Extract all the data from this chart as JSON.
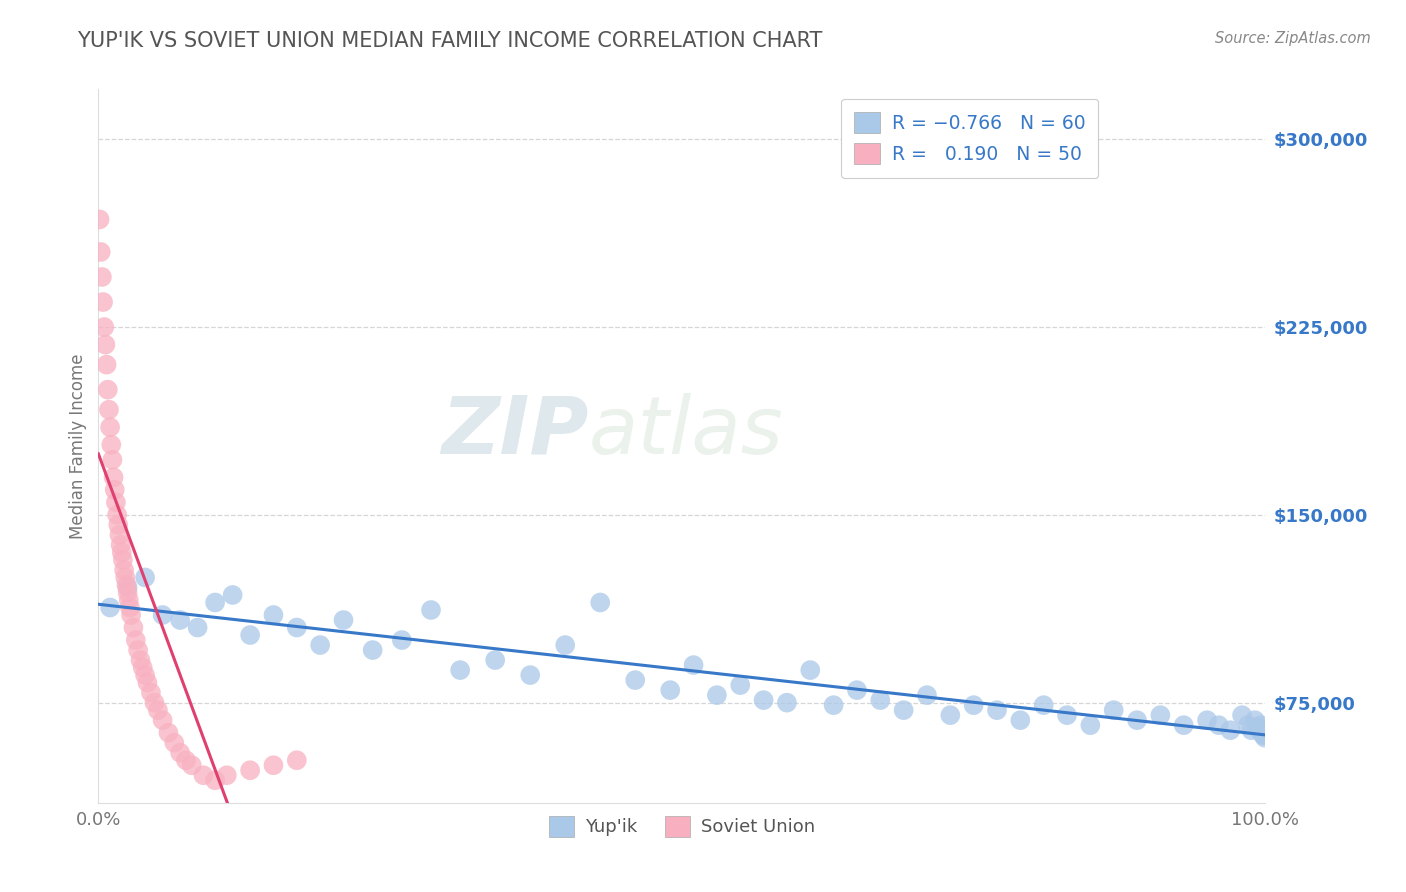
{
  "title": "YUP'IK VS SOVIET UNION MEDIAN FAMILY INCOME CORRELATION CHART",
  "source": "Source: ZipAtlas.com",
  "ylabel": "Median Family Income",
  "watermark_zip": "ZIP",
  "watermark_atlas": "atlas",
  "xmin": 0.0,
  "xmax": 1.0,
  "xtick_labels": [
    "0.0%",
    "100.0%"
  ],
  "ytick_values": [
    75000,
    150000,
    225000,
    300000
  ],
  "ymin": 35000,
  "ymax": 320000,
  "background_color": "#ffffff",
  "grid_color": "#cccccc",
  "title_color": "#555555",
  "yupik_scatter_color": "#aac8e8",
  "yupik_line_color": "#3878c8",
  "soviet_scatter_color": "#f8b0c0",
  "soviet_line_color": "#e04070",
  "soviet_dashed_color": "#f8b0c0",
  "right_label_color": "#3878c8",
  "watermark_color": "#d0dfe8",
  "legend_label_color": "#3878c8",
  "source_color": "#888888",
  "yupik_points_x": [
    0.01,
    0.025,
    0.04,
    0.055,
    0.07,
    0.085,
    0.1,
    0.115,
    0.13,
    0.15,
    0.17,
    0.19,
    0.21,
    0.235,
    0.26,
    0.285,
    0.31,
    0.34,
    0.37,
    0.4,
    0.43,
    0.46,
    0.49,
    0.51,
    0.53,
    0.55,
    0.57,
    0.59,
    0.61,
    0.63,
    0.65,
    0.67,
    0.69,
    0.71,
    0.73,
    0.75,
    0.77,
    0.79,
    0.81,
    0.83,
    0.85,
    0.87,
    0.89,
    0.91,
    0.93,
    0.95,
    0.96,
    0.97,
    0.98,
    0.985,
    0.988,
    0.991,
    0.993,
    0.995,
    0.996,
    0.997,
    0.998,
    0.9985,
    0.999,
    0.9995
  ],
  "yupik_points_y": [
    113000,
    121000,
    125000,
    110000,
    108000,
    105000,
    115000,
    118000,
    102000,
    110000,
    105000,
    98000,
    108000,
    96000,
    100000,
    112000,
    88000,
    92000,
    86000,
    98000,
    115000,
    84000,
    80000,
    90000,
    78000,
    82000,
    76000,
    75000,
    88000,
    74000,
    80000,
    76000,
    72000,
    78000,
    70000,
    74000,
    72000,
    68000,
    74000,
    70000,
    66000,
    72000,
    68000,
    70000,
    66000,
    68000,
    66000,
    64000,
    70000,
    66000,
    64000,
    68000,
    65000,
    64000,
    66000,
    63000,
    62000,
    64000,
    62000,
    61000
  ],
  "soviet_points_x": [
    0.001,
    0.002,
    0.003,
    0.004,
    0.005,
    0.006,
    0.007,
    0.008,
    0.009,
    0.01,
    0.011,
    0.012,
    0.013,
    0.014,
    0.015,
    0.016,
    0.017,
    0.018,
    0.019,
    0.02,
    0.021,
    0.022,
    0.023,
    0.024,
    0.025,
    0.026,
    0.027,
    0.028,
    0.03,
    0.032,
    0.034,
    0.036,
    0.038,
    0.04,
    0.042,
    0.045,
    0.048,
    0.051,
    0.055,
    0.06,
    0.065,
    0.07,
    0.075,
    0.08,
    0.09,
    0.1,
    0.11,
    0.13,
    0.15,
    0.17
  ],
  "soviet_points_y": [
    268000,
    255000,
    245000,
    235000,
    225000,
    218000,
    210000,
    200000,
    192000,
    185000,
    178000,
    172000,
    165000,
    160000,
    155000,
    150000,
    146000,
    142000,
    138000,
    135000,
    132000,
    128000,
    125000,
    122000,
    119000,
    116000,
    113000,
    110000,
    105000,
    100000,
    96000,
    92000,
    89000,
    86000,
    83000,
    79000,
    75000,
    72000,
    68000,
    63000,
    59000,
    55000,
    52000,
    50000,
    46000,
    44000,
    46000,
    48000,
    50000,
    52000
  ]
}
